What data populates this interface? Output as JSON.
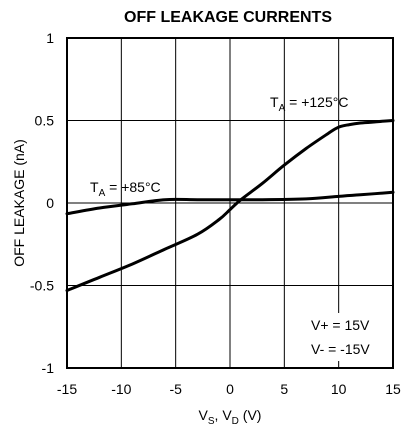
{
  "chart_data": {
    "type": "line",
    "title": "OFF LEAKAGE CURRENTS",
    "xlabel": {
      "main": "V",
      "sub1": "S",
      "sep": ", V",
      "sub2": "D",
      "unit": " (V)"
    },
    "ylabel": "OFF LEAKAGE (nA)",
    "xlim": [
      -15,
      15
    ],
    "ylim": [
      -1,
      1
    ],
    "xticks": [
      "-15",
      "-10",
      "-5",
      "0",
      "5",
      "10",
      "15"
    ],
    "yticks": [
      "1",
      "0.5",
      "0",
      "-0.5",
      "-1"
    ],
    "grid": true,
    "series": [
      {
        "name": "T_A = +125°C",
        "x": [
          -15,
          -12,
          -9,
          -6,
          -3,
          -1,
          0,
          1,
          3,
          5,
          7,
          9,
          10,
          11,
          12,
          13,
          14,
          15
        ],
        "y": [
          -0.53,
          -0.45,
          -0.37,
          -0.28,
          -0.19,
          -0.1,
          -0.04,
          0.02,
          0.12,
          0.23,
          0.33,
          0.42,
          0.46,
          0.475,
          0.485,
          0.49,
          0.495,
          0.5
        ]
      },
      {
        "name": "T_A = +85°C",
        "x": [
          -15,
          -12,
          -9,
          -6,
          -3,
          0,
          3,
          7,
          10,
          12,
          15
        ],
        "y": [
          -0.065,
          -0.03,
          -0.005,
          0.02,
          0.02,
          0.02,
          0.02,
          0.025,
          0.04,
          0.05,
          0.065
        ]
      }
    ],
    "annotations": {
      "t125": {
        "pre": "T",
        "sub": "A",
        "post": " = +125°C"
      },
      "t85": {
        "pre": "T",
        "sub": "A",
        "post": " = +85°C"
      },
      "vplus": "V+ = 15V",
      "vminus": "V- = -15V"
    }
  }
}
